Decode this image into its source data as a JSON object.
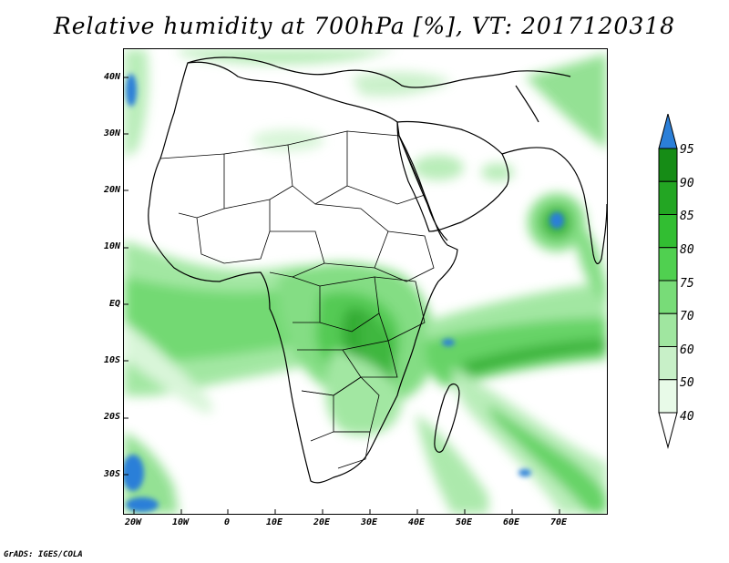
{
  "title": "Relative humidity at 700hPa [%], VT: 2017120318",
  "credit": "GrADS: IGES/COLA",
  "lat_labels": [
    "40N",
    "30N",
    "20N",
    "10N",
    "EQ",
    "10S",
    "20S",
    "30S"
  ],
  "lon_labels": [
    "20W",
    "10W",
    "0",
    "10E",
    "20E",
    "30E",
    "40E",
    "50E",
    "60E",
    "70E"
  ],
  "colorbar": {
    "labels": [
      "40",
      "50",
      "60",
      "70",
      "75",
      "80",
      "85",
      "90",
      "95"
    ],
    "colors": [
      "#e8fae8",
      "#c8f0c8",
      "#a0e6a0",
      "#78dc78",
      "#50d050",
      "#32be32",
      "#23a623",
      "#168c16",
      "#1e78d8"
    ]
  },
  "colors": {
    "land_outline": "#000000",
    "humid_low": "#d7f5d7",
    "humid_mid": "#64d264",
    "humid_high": "#1e9a1e",
    "saturated": "#2b7fd8"
  }
}
